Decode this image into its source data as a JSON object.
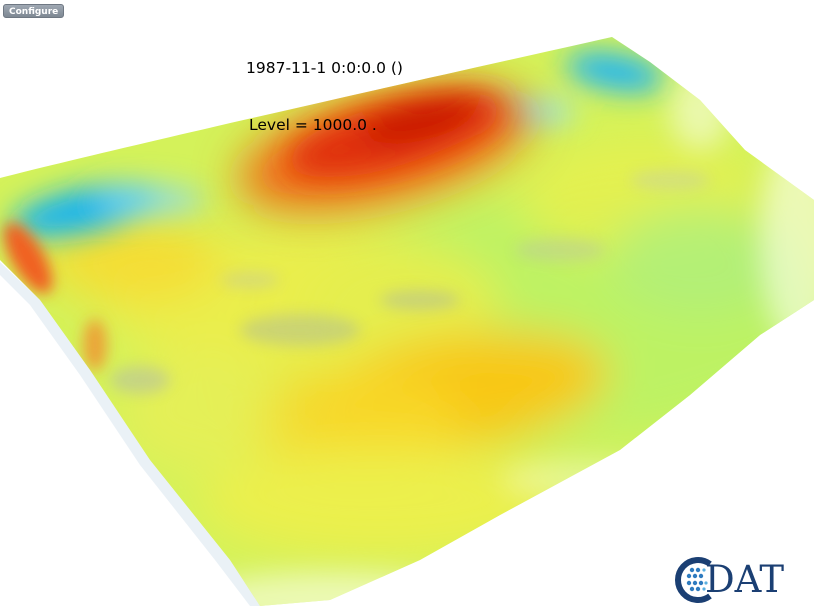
{
  "toolbar": {
    "configure_label": "Configure"
  },
  "plot": {
    "timestamp": "1987-11-1 0:0:0.0 ()",
    "level": "Level = 1000.0 ."
  },
  "logo": {
    "text": "DAT",
    "icon": "cdat-c-logo-icon"
  },
  "colors": {
    "cold": "#14b4f0",
    "cool": "#7ce8ff",
    "neutral": "#c8f05a",
    "warm": "#f8e63c",
    "hot": "#d61e08",
    "logo_blue": "#1b3f73"
  }
}
